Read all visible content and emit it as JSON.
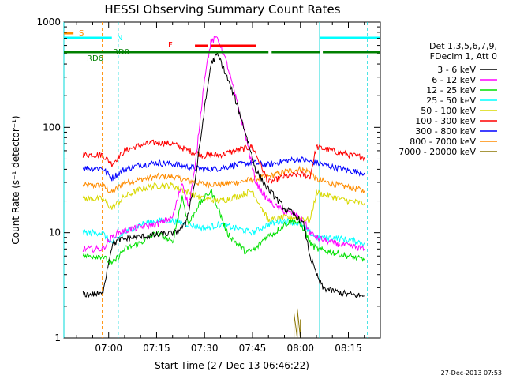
{
  "chart_data": {
    "type": "line",
    "title": "HESSI Observing Summary Count Rates",
    "xlabel": "Start Time (27-Dec-13 06:46:22)",
    "ylabel": "Count Rate (s⁻¹ detector⁻¹)",
    "yscale": "log",
    "ylim": [
      1,
      1000
    ],
    "xlim": [
      "06:46",
      "08:25"
    ],
    "x_ticks": [
      "07:00",
      "07:15",
      "07:30",
      "07:45",
      "08:00",
      "08:15"
    ],
    "y_ticks": [
      "1",
      "10",
      "100",
      "1000"
    ],
    "legend_header": [
      "Det 1,3,5,6,7,9,",
      "FDecim 1, Att 0"
    ],
    "timestamp": "27-Dec-2013 07:53",
    "series": [
      {
        "name": "3 - 6 keV",
        "color": "#000000",
        "x": [
          "06:52",
          "06:58",
          "07:01",
          "07:03",
          "07:08",
          "07:15",
          "07:21",
          "07:24",
          "07:27",
          "07:30",
          "07:32",
          "07:34",
          "07:35",
          "07:37",
          "07:40",
          "07:43",
          "07:46",
          "07:49",
          "07:52",
          "07:55",
          "07:58",
          "08:01",
          "08:03",
          "08:05",
          "08:07",
          "08:10",
          "08:15",
          "08:20"
        ],
        "values": [
          2.6,
          2.6,
          7.5,
          8.5,
          9,
          9.5,
          10,
          12,
          30,
          150,
          400,
          490,
          430,
          300,
          170,
          85,
          40,
          28,
          22,
          17,
          15,
          12,
          6,
          4,
          3,
          2.8,
          2.6,
          2.5
        ]
      },
      {
        "name": "6 - 12 keV",
        "color": "#ff00ff",
        "x": [
          "06:52",
          "06:58",
          "07:01",
          "07:03",
          "07:08",
          "07:15",
          "07:20",
          "07:23",
          "07:25",
          "07:27",
          "07:30",
          "07:32",
          "07:34",
          "07:35",
          "07:37",
          "07:40",
          "07:43",
          "07:46",
          "07:49",
          "07:52",
          "07:55",
          "07:58",
          "08:01",
          "08:03",
          "08:05",
          "08:10",
          "08:15",
          "08:20"
        ],
        "values": [
          7,
          7,
          9,
          10,
          11,
          12,
          14,
          30,
          18,
          40,
          300,
          650,
          720,
          600,
          400,
          180,
          80,
          30,
          22,
          18,
          16,
          15,
          13,
          10,
          9,
          8,
          7.5,
          7
        ]
      },
      {
        "name": "12 - 25 keV",
        "color": "#00e000",
        "x": [
          "06:52",
          "06:58",
          "07:01",
          "07:05",
          "07:10",
          "07:15",
          "07:20",
          "07:23",
          "07:25",
          "07:28",
          "07:32",
          "07:34",
          "07:37",
          "07:40",
          "07:43",
          "07:46",
          "07:49",
          "07:52",
          "07:55",
          "07:58",
          "08:01",
          "08:03",
          "08:05",
          "08:10",
          "08:15",
          "08:20"
        ],
        "values": [
          6,
          6,
          5,
          7,
          8,
          10,
          8,
          22,
          12,
          18,
          25,
          18,
          10,
          8,
          6.5,
          7,
          9,
          10,
          12,
          13,
          11,
          8,
          7,
          6.5,
          6,
          5.5
        ]
      },
      {
        "name": "25 - 50 keV",
        "color": "#00ffff",
        "x": [
          "06:52",
          "06:58",
          "07:01",
          "07:05",
          "07:10",
          "07:15",
          "07:20",
          "07:25",
          "07:30",
          "07:35",
          "07:40",
          "07:45",
          "07:50",
          "07:55",
          "08:00",
          "08:03",
          "08:05",
          "08:10",
          "08:15",
          "08:20"
        ],
        "values": [
          10,
          10,
          8,
          10,
          12,
          13,
          13,
          12,
          11,
          12,
          11,
          10,
          12,
          13,
          12,
          10,
          9,
          9,
          8.5,
          8
        ]
      },
      {
        "name": "50 - 100 keV",
        "color": "#d8d800",
        "x": [
          "06:52",
          "06:58",
          "07:01",
          "07:05",
          "07:10",
          "07:15",
          "07:20",
          "07:25",
          "07:30",
          "07:35",
          "07:40",
          "07:45",
          "07:50",
          "07:55",
          "08:00",
          "08:03",
          "08:05",
          "08:10",
          "08:15",
          "08:20"
        ],
        "values": [
          21,
          21,
          17,
          22,
          26,
          28,
          28,
          24,
          21,
          20,
          22,
          25,
          13,
          14,
          14,
          13,
          24,
          22,
          20,
          19
        ]
      },
      {
        "name": "100 - 300 keV",
        "color": "#ff0000",
        "x": [
          "06:52",
          "06:58",
          "07:01",
          "07:05",
          "07:10",
          "07:15",
          "07:20",
          "07:25",
          "07:30",
          "07:35",
          "07:40",
          "07:45",
          "07:50",
          "07:55",
          "08:00",
          "08:03",
          "08:05",
          "08:10",
          "08:15",
          "08:20"
        ],
        "values": [
          55,
          55,
          45,
          60,
          68,
          72,
          70,
          60,
          54,
          55,
          60,
          66,
          30,
          34,
          36,
          34,
          65,
          60,
          55,
          52
        ]
      },
      {
        "name": "300 - 800 keV",
        "color": "#0000ff",
        "x": [
          "06:52",
          "06:58",
          "07:01",
          "07:05",
          "07:10",
          "07:15",
          "07:20",
          "07:25",
          "07:30",
          "07:35",
          "07:40",
          "07:45",
          "07:50",
          "07:55",
          "08:00",
          "08:03",
          "08:05",
          "08:10",
          "08:15",
          "08:20"
        ],
        "values": [
          41,
          41,
          33,
          40,
          44,
          46,
          45,
          42,
          40,
          41,
          44,
          46,
          44,
          48,
          50,
          47,
          46,
          42,
          39,
          37
        ]
      },
      {
        "name": "800 - 7000 keV",
        "color": "#ff8c00",
        "x": [
          "06:52",
          "06:58",
          "07:01",
          "07:05",
          "07:10",
          "07:15",
          "07:20",
          "07:25",
          "07:30",
          "07:35",
          "07:40",
          "07:45",
          "07:50",
          "07:55",
          "08:00",
          "08:03",
          "08:05",
          "08:10",
          "08:15",
          "08:20"
        ],
        "values": [
          28,
          28,
          24,
          30,
          32,
          34,
          34,
          31,
          29,
          29,
          30,
          32,
          34,
          38,
          40,
          38,
          32,
          29,
          27,
          25
        ]
      },
      {
        "name": "7000 - 20000 keV",
        "color": "#8b7500",
        "x": [
          "07:58",
          "07:58",
          "07:59",
          "07:59",
          "08:00",
          "08:00"
        ],
        "values": [
          1,
          1.7,
          1,
          1.9,
          1,
          1.5
        ]
      }
    ],
    "flags": [
      {
        "label": "S",
        "color": "#ff8c00"
      },
      {
        "label": "N",
        "color": "#00ffff"
      },
      {
        "label": "F",
        "color": "#ff0000"
      },
      {
        "label": "RD0",
        "color": "#008000"
      },
      {
        "label": "RD6",
        "color": "#008000"
      }
    ]
  }
}
